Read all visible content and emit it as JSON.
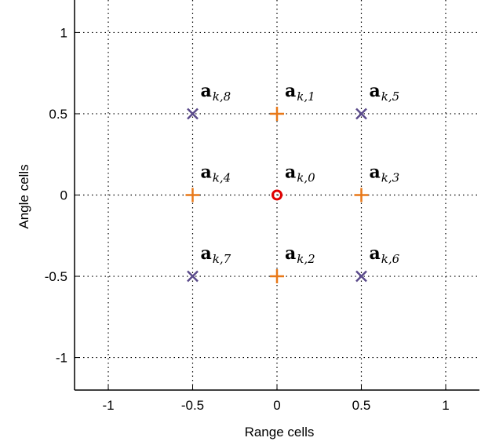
{
  "chart_data": {
    "type": "scatter",
    "xlabel": "Range cells",
    "ylabel": "Angle cells",
    "xlim": [
      -1.2,
      1.2
    ],
    "ylim": [
      -1.2,
      1.2
    ],
    "grid": true,
    "xticks": [
      -1,
      -0.5,
      0,
      0.5,
      1
    ],
    "yticks": [
      -1,
      -0.5,
      0,
      0.5,
      1
    ],
    "xtick_labels": [
      "-1",
      "-0.5",
      "0",
      "0.5",
      "1"
    ],
    "ytick_labels": [
      "-1",
      "-0.5",
      "0",
      "0.5",
      "1"
    ],
    "points": [
      {
        "x": 0,
        "y": 0,
        "marker": "circle",
        "color": "#e00000",
        "label_base": "a",
        "label_sub": "k,0"
      },
      {
        "x": 0,
        "y": 0.5,
        "marker": "plus",
        "color": "#e87818",
        "label_base": "a",
        "label_sub": "k,1"
      },
      {
        "x": 0,
        "y": -0.5,
        "marker": "plus",
        "color": "#e87818",
        "label_base": "a",
        "label_sub": "k,2"
      },
      {
        "x": 0.5,
        "y": 0,
        "marker": "plus",
        "color": "#e87818",
        "label_base": "a",
        "label_sub": "k,3"
      },
      {
        "x": -0.5,
        "y": 0,
        "marker": "plus",
        "color": "#e87818",
        "label_base": "a",
        "label_sub": "k,4"
      },
      {
        "x": 0.5,
        "y": 0.5,
        "marker": "x",
        "color": "#5a4a8a",
        "label_base": "a",
        "label_sub": "k,5"
      },
      {
        "x": 0.5,
        "y": -0.5,
        "marker": "x",
        "color": "#5a4a8a",
        "label_base": "a",
        "label_sub": "k,6"
      },
      {
        "x": -0.5,
        "y": -0.5,
        "marker": "x",
        "color": "#5a4a8a",
        "label_base": "a",
        "label_sub": "k,7"
      },
      {
        "x": -0.5,
        "y": 0.5,
        "marker": "x",
        "color": "#5a4a8a",
        "label_base": "a",
        "label_sub": "k,8"
      }
    ]
  }
}
